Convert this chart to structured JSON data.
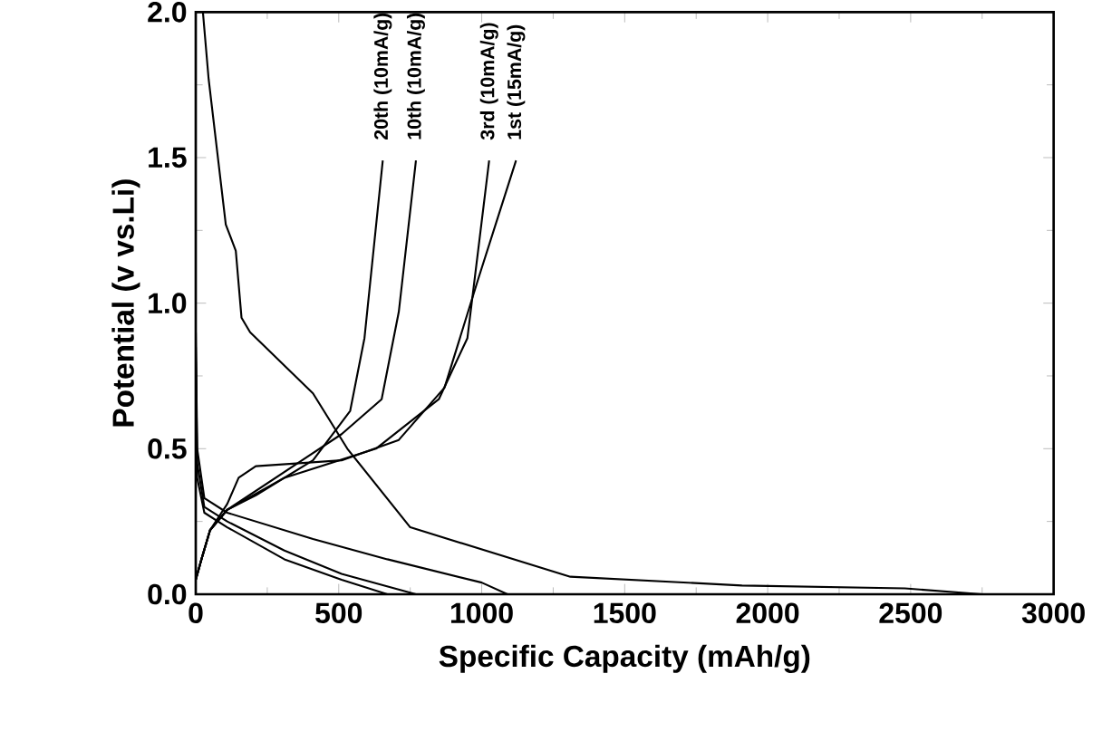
{
  "chart_data": {
    "type": "line",
    "xlabel": "Specific Capacity (mAh/g)",
    "ylabel": "Potential (v vs.Li)",
    "xlim": [
      0,
      3000
    ],
    "xticks": [
      0,
      500,
      1000,
      1500,
      2000,
      2500,
      3000
    ],
    "ylim": [
      0,
      2.0
    ],
    "yticks": [
      {
        "value": 0,
        "label": "0.0"
      },
      {
        "value": 0.5,
        "label": "0.5"
      },
      {
        "value": 1.0,
        "label": "1.0"
      },
      {
        "value": 1.5,
        "label": "1.5"
      },
      {
        "value": 2.0,
        "label": "2.0"
      }
    ],
    "marker": "none",
    "line_style": "solid",
    "series": [
      {
        "color": "#000000",
        "x": [
          25,
          45,
          75,
          105,
          140,
          160,
          190,
          410,
          530,
          750,
          1310,
          1910,
          2480,
          2750
        ],
        "values": [
          2.0,
          1.77,
          1.52,
          1.27,
          1.18,
          0.95,
          0.9,
          0.69,
          0.5,
          0.23,
          0.06,
          0.03,
          0.02,
          0
        ]
      },
      {
        "color": "#000000",
        "x": [
          0,
          5,
          30,
          110,
          410,
          670,
          1000,
          1090
        ],
        "values": [
          0.9,
          0.5,
          0.33,
          0.28,
          0.19,
          0.12,
          0.04,
          0
        ]
      },
      {
        "color": "#000000",
        "x": [
          0,
          5,
          30,
          110,
          310,
          510,
          770
        ],
        "values": [
          0.85,
          0.45,
          0.3,
          0.25,
          0.15,
          0.07,
          0
        ]
      },
      {
        "color": "#000000",
        "x": [
          0,
          5,
          30,
          110,
          310,
          510,
          670
        ],
        "values": [
          0.8,
          0.4,
          0.28,
          0.23,
          0.12,
          0.05,
          0
        ]
      },
      {
        "color": "#000000",
        "x": [
          0,
          20,
          50,
          110,
          150,
          210,
          510,
          710,
          870,
          990,
          1120
        ],
        "values": [
          0.05,
          0.12,
          0.22,
          0.31,
          0.4,
          0.44,
          0.46,
          0.53,
          0.71,
          1.09,
          1.49
        ]
      },
      {
        "color": "#000000",
        "x": [
          0,
          20,
          50,
          110,
          310,
          630,
          850,
          950,
          1026
        ],
        "values": [
          0.05,
          0.12,
          0.22,
          0.29,
          0.4,
          0.5,
          0.67,
          0.88,
          1.49
        ]
      },
      {
        "color": "#000000",
        "x": [
          0,
          20,
          50,
          110,
          310,
          510,
          650,
          710,
          770
        ],
        "values": [
          0.05,
          0.12,
          0.22,
          0.29,
          0.42,
          0.55,
          0.67,
          0.97,
          1.49
        ]
      },
      {
        "color": "#000000",
        "x": [
          0,
          20,
          50,
          110,
          210,
          410,
          540,
          590,
          654
        ],
        "values": [
          0.05,
          0.12,
          0.22,
          0.29,
          0.34,
          0.46,
          0.63,
          0.88,
          1.49
        ]
      }
    ],
    "annotations": [
      {
        "text": "20th (10mA/g)",
        "x": 654,
        "y": 1.49
      },
      {
        "text": "10th (10mA/g)",
        "x": 770,
        "y": 1.49
      },
      {
        "text": "3rd (10mA/g)",
        "x": 1026,
        "y": 1.49
      },
      {
        "text": "1st (15mA/g)",
        "x": 1120,
        "y": 1.49
      }
    ]
  }
}
